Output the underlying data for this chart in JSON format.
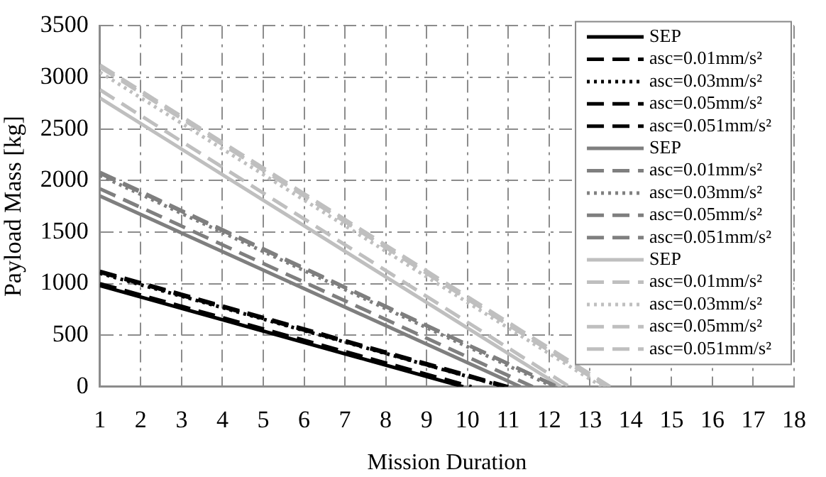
{
  "chart_data": {
    "type": "line",
    "xlabel": "Mission Duration",
    "ylabel": "Payload Mass [kg]",
    "xlim": [
      1,
      18
    ],
    "xticks": [
      1,
      2,
      3,
      4,
      5,
      6,
      7,
      8,
      9,
      10,
      11,
      12,
      13,
      14,
      15,
      16,
      17,
      18
    ],
    "ylim": [
      0,
      3500
    ],
    "yticks": [
      0,
      500,
      1000,
      1500,
      2000,
      2500,
      3000,
      3500
    ],
    "grid": true,
    "legend": "top right",
    "marker": "none",
    "series": [
      {
        "name": "SEP",
        "color": "#000000",
        "line_style": "solid",
        "x": [
          1,
          9.9
        ],
        "values": [
          980,
          0
        ]
      },
      {
        "name": "asc=0.01mm/s²",
        "color": "#000000",
        "line_style": "dashed",
        "x": [
          1,
          10.1
        ],
        "values": [
          1000,
          0
        ]
      },
      {
        "name": "asc=0.03mm/s²",
        "color": "#000000",
        "line_style": "dotted",
        "x": [
          1,
          10.9
        ],
        "values": [
          1100,
          0
        ]
      },
      {
        "name": "asc=0.05mm/s²",
        "color": "#000000",
        "line_style": "dashed",
        "x": [
          1,
          11
        ],
        "values": [
          1120,
          0
        ]
      },
      {
        "name": "asc=0.051mm/s²",
        "color": "#000000",
        "line_style": "dashed",
        "x": [
          1,
          10.9
        ],
        "values": [
          1110,
          0
        ]
      },
      {
        "name": "SEP",
        "color": "#7f7f7f",
        "line_style": "solid",
        "x": [
          1,
          11.3
        ],
        "values": [
          1850,
          0
        ]
      },
      {
        "name": "asc=0.01mm/s²",
        "color": "#7f7f7f",
        "line_style": "dashed",
        "x": [
          1,
          11.6
        ],
        "values": [
          1920,
          0
        ]
      },
      {
        "name": "asc=0.03mm/s²",
        "color": "#7f7f7f",
        "line_style": "dotted",
        "x": [
          1,
          12.1
        ],
        "values": [
          2050,
          0
        ]
      },
      {
        "name": "asc=0.05mm/s²",
        "color": "#7f7f7f",
        "line_style": "dashed",
        "x": [
          1,
          12.2
        ],
        "values": [
          2080,
          0
        ]
      },
      {
        "name": "asc=0.051mm/s²",
        "color": "#7f7f7f",
        "line_style": "dashed",
        "x": [
          1,
          12.2
        ],
        "values": [
          2070,
          0
        ]
      },
      {
        "name": "SEP",
        "color": "#bfbfbf",
        "line_style": "solid",
        "x": [
          1,
          12.3
        ],
        "values": [
          2800,
          0
        ]
      },
      {
        "name": "asc=0.01mm/s²",
        "color": "#bfbfbf",
        "line_style": "dashed",
        "x": [
          1,
          12.5
        ],
        "values": [
          2880,
          0
        ]
      },
      {
        "name": "asc=0.03mm/s²",
        "color": "#bfbfbf",
        "line_style": "dotted",
        "x": [
          1,
          13.3
        ],
        "values": [
          3050,
          0
        ]
      },
      {
        "name": "asc=0.05mm/s²",
        "color": "#bfbfbf",
        "line_style": "dashed",
        "x": [
          1,
          13.5
        ],
        "values": [
          3120,
          0
        ]
      },
      {
        "name": "asc=0.051mm/s²",
        "color": "#bfbfbf",
        "line_style": "dashed",
        "x": [
          1,
          13.4
        ],
        "values": [
          3100,
          0
        ]
      }
    ]
  }
}
